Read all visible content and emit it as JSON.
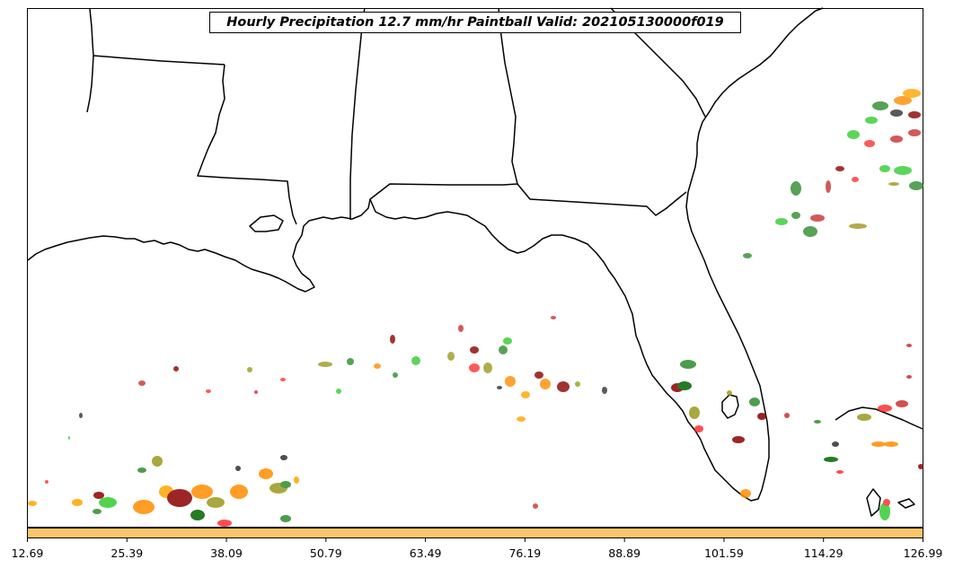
{
  "map": {
    "title": "Hourly Precipitation 12.7 mm/hr Paintball Valid: 202105130000f019",
    "colorbar_color": "#fdc56b",
    "colorbar_ticks": [
      "12.69",
      "25.39",
      "38.09",
      "50.79",
      "63.49",
      "76.19",
      "88.89",
      "101.59",
      "114.29",
      "126.99"
    ],
    "member_colors": [
      "#8b0000",
      "#ff3030",
      "#ff8c00",
      "#2e8b2e",
      "#32cd32",
      "#9a9a1e",
      "#006400",
      "#303030",
      "#c83232",
      "#a09620"
    ]
  }
}
